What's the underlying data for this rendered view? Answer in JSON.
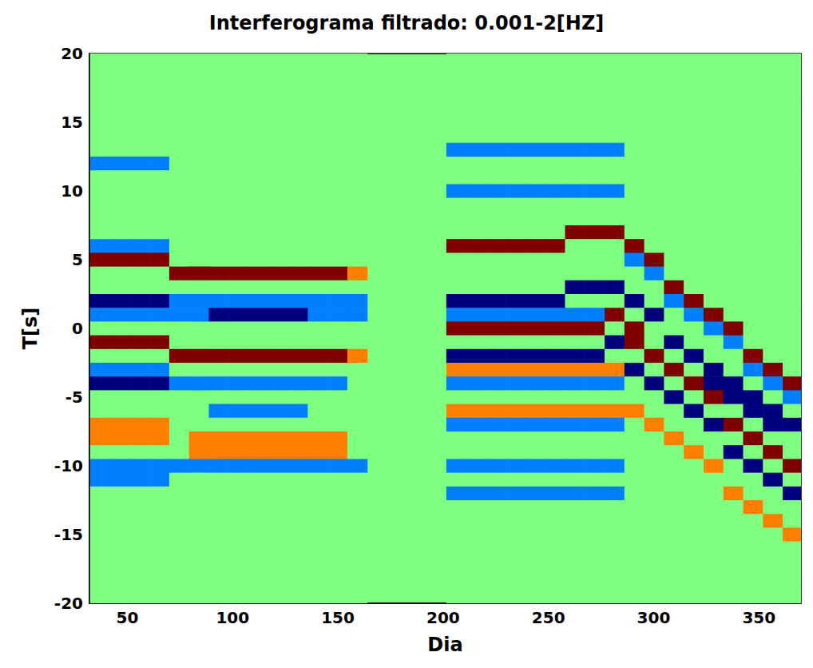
{
  "chart_data": {
    "type": "heatmap",
    "title": "Interferograma filtrado: 0.001-2[HZ]",
    "x_label": "Dia",
    "y_label": "T[s]",
    "xlim": [
      32,
      370
    ],
    "ylim": [
      -20,
      20
    ],
    "xticks": [
      50,
      100,
      150,
      200,
      250,
      300,
      350
    ],
    "yticks": [
      -20,
      -15,
      -10,
      -5,
      0,
      5,
      10,
      15,
      20
    ],
    "zlim": [
      -2,
      2
    ],
    "grid": false,
    "x": [
      37,
      46.4,
      55.8,
      65.2,
      74.6,
      84,
      93.4,
      102.8,
      112.2,
      121.6,
      131,
      140.4,
      149.8,
      159.2,
      168.6,
      178,
      187.4,
      196.8,
      206.2,
      215.6,
      225,
      234.4,
      243.8,
      253.2,
      262.6,
      272,
      281.4,
      290.8,
      300.2,
      309.6,
      319,
      328.4,
      337.8,
      347.2,
      356.6,
      366
    ],
    "y": [
      20,
      19,
      18,
      17,
      16,
      15,
      14,
      13,
      12,
      11,
      10,
      9,
      8,
      7,
      6,
      5,
      4,
      3,
      2,
      1,
      0,
      -1,
      -2,
      -3,
      -4,
      -5,
      -6,
      -7,
      -8,
      -9,
      -10,
      -11,
      -12,
      -13,
      -14,
      -15,
      -16,
      -17,
      -18,
      -19,
      -20
    ],
    "values": [
      [
        0,
        0,
        0,
        0,
        0,
        0,
        0,
        0,
        0,
        0,
        0,
        0,
        0,
        0,
        null,
        null,
        null,
        null,
        0,
        0,
        0,
        0,
        0,
        0,
        0,
        0,
        0,
        0,
        0,
        0,
        0,
        0,
        0,
        0,
        0,
        0
      ],
      [
        0,
        0,
        0,
        0,
        0,
        0,
        0,
        0,
        0,
        0,
        0,
        0,
        0,
        0,
        null,
        null,
        null,
        null,
        0,
        0,
        0,
        0,
        0,
        0,
        0,
        0,
        0,
        0,
        0,
        0,
        0,
        0,
        0,
        0,
        0,
        0
      ],
      [
        0,
        0,
        0,
        0,
        0,
        0,
        0,
        0,
        0,
        0,
        0,
        0,
        0,
        0,
        null,
        null,
        null,
        null,
        0,
        0,
        0,
        0,
        0,
        0,
        0,
        0,
        0,
        0,
        0,
        0,
        0,
        0,
        0,
        0,
        0,
        0
      ],
      [
        0,
        0,
        0,
        0,
        0,
        0,
        0,
        0,
        0,
        0,
        0,
        0,
        0,
        0,
        null,
        null,
        null,
        null,
        0,
        0,
        0,
        0,
        0,
        0,
        0,
        0,
        0,
        0,
        0,
        0,
        0,
        0,
        0,
        0,
        0,
        0
      ],
      [
        0,
        0,
        0,
        0,
        0,
        0,
        0,
        0,
        0,
        0,
        0,
        0,
        0,
        0,
        null,
        null,
        null,
        null,
        0,
        0,
        0,
        0,
        0,
        0,
        0,
        0,
        0,
        0,
        0,
        0,
        0,
        0,
        0,
        0,
        0,
        0
      ],
      [
        0,
        0,
        0,
        0,
        0,
        0,
        0,
        0,
        0,
        0,
        0,
        0,
        0,
        0,
        null,
        null,
        null,
        null,
        0,
        0,
        0,
        0,
        0,
        0,
        0,
        0,
        0,
        0,
        0,
        0,
        0,
        0,
        0,
        0,
        0,
        0
      ],
      [
        0,
        0,
        0,
        0,
        0,
        0,
        0,
        0,
        0,
        0,
        0,
        0,
        0,
        0,
        null,
        null,
        null,
        null,
        0,
        0,
        0,
        0,
        0,
        0,
        0,
        0,
        0,
        0,
        0,
        0,
        0,
        0,
        0,
        0,
        0,
        0
      ],
      [
        0,
        0,
        0,
        0,
        0,
        0,
        0,
        0,
        0,
        0,
        0,
        0,
        0,
        0,
        null,
        null,
        null,
        null,
        -1,
        -1,
        -1,
        -1,
        -1,
        -1,
        -1,
        -1,
        -1,
        0,
        0,
        0,
        0,
        0,
        0,
        0,
        0,
        0
      ],
      [
        -1,
        -1,
        -1,
        -1,
        0,
        0,
        0,
        0,
        0,
        0,
        0,
        0,
        0,
        0,
        null,
        null,
        null,
        null,
        0,
        0,
        0,
        0,
        0,
        0,
        0,
        0,
        0,
        0,
        0,
        0,
        0,
        0,
        0,
        0,
        0,
        0
      ],
      [
        0,
        0,
        0,
        0,
        0,
        0,
        0,
        0,
        0,
        0,
        0,
        0,
        0,
        0,
        null,
        null,
        null,
        null,
        0,
        0,
        0,
        0,
        0,
        0,
        0,
        0,
        0,
        0,
        0,
        0,
        0,
        0,
        0,
        0,
        0,
        0
      ],
      [
        0,
        0,
        0,
        0,
        0,
        0,
        0,
        0,
        0,
        0,
        0,
        0,
        0,
        0,
        null,
        null,
        null,
        null,
        -1,
        -1,
        -1,
        -1,
        -1,
        -1,
        -1,
        -1,
        -1,
        0,
        0,
        0,
        0,
        0,
        0,
        0,
        0,
        0
      ],
      [
        0,
        0,
        0,
        0,
        0,
        0,
        0,
        0,
        0,
        0,
        0,
        0,
        0,
        0,
        null,
        null,
        null,
        null,
        0,
        0,
        0,
        0,
        0,
        0,
        0,
        0,
        0,
        0,
        0,
        0,
        0,
        0,
        0,
        0,
        0,
        0
      ],
      [
        0,
        0,
        0,
        0,
        0,
        0,
        0,
        0,
        0,
        0,
        0,
        0,
        0,
        0,
        null,
        null,
        null,
        null,
        0,
        0,
        0,
        0,
        0,
        0,
        0,
        0,
        0,
        0,
        0,
        0,
        0,
        0,
        0,
        0,
        0,
        0
      ],
      [
        0,
        0,
        0,
        0,
        0,
        0,
        0,
        0,
        0,
        0,
        0,
        0,
        0,
        0,
        null,
        null,
        null,
        null,
        0,
        0,
        0,
        0,
        0,
        0,
        2,
        2,
        2,
        0,
        0,
        0,
        0,
        0,
        0,
        0,
        0,
        0
      ],
      [
        -1,
        -1,
        -1,
        -1,
        0,
        0,
        0,
        0,
        0,
        0,
        0,
        0,
        0,
        0,
        null,
        null,
        null,
        null,
        2,
        2,
        2,
        2,
        2,
        2,
        0,
        0,
        0,
        2,
        0,
        0,
        0,
        0,
        0,
        0,
        0,
        0
      ],
      [
        2,
        2,
        2,
        2,
        0,
        0,
        0,
        0,
        0,
        0,
        0,
        0,
        0,
        0,
        null,
        null,
        null,
        null,
        0,
        0,
        0,
        0,
        0,
        0,
        0,
        0,
        0,
        -1,
        2,
        0,
        0,
        0,
        0,
        0,
        0,
        0
      ],
      [
        0,
        0,
        0,
        0,
        2,
        2,
        2,
        2,
        2,
        2,
        2,
        2,
        2,
        1,
        null,
        null,
        null,
        null,
        0,
        0,
        0,
        0,
        0,
        0,
        0,
        0,
        0,
        0,
        -1,
        0,
        0,
        0,
        0,
        0,
        0,
        0
      ],
      [
        0,
        0,
        0,
        0,
        0,
        0,
        0,
        0,
        0,
        0,
        0,
        0,
        0,
        0,
        null,
        null,
        null,
        null,
        0,
        0,
        0,
        0,
        0,
        0,
        -2,
        -2,
        -2,
        0,
        0,
        2,
        0,
        0,
        0,
        0,
        0,
        0
      ],
      [
        -2,
        -2,
        -2,
        -2,
        -1,
        -1,
        -1,
        -1,
        -1,
        -1,
        -1,
        -1,
        -1,
        -1,
        null,
        null,
        null,
        null,
        -2,
        -2,
        -2,
        -2,
        -2,
        -2,
        0,
        0,
        0,
        -2,
        0,
        -1,
        2,
        0,
        0,
        0,
        0,
        0
      ],
      [
        -1,
        -1,
        -1,
        -1,
        -1,
        -1,
        -2,
        -2,
        -2,
        -2,
        -2,
        -1,
        -1,
        -1,
        null,
        null,
        null,
        null,
        -1,
        -1,
        -1,
        -1,
        -1,
        -1,
        -1,
        -1,
        2,
        0,
        -2,
        0,
        -1,
        2,
        0,
        0,
        0,
        0
      ],
      [
        0,
        0,
        0,
        0,
        0,
        0,
        0,
        0,
        0,
        0,
        0,
        0,
        0,
        0,
        null,
        null,
        null,
        null,
        2,
        2,
        2,
        2,
        2,
        2,
        2,
        2,
        0,
        2,
        0,
        0,
        0,
        -1,
        2,
        0,
        0,
        0
      ],
      [
        2,
        2,
        2,
        2,
        0,
        0,
        0,
        0,
        0,
        0,
        0,
        0,
        0,
        0,
        null,
        null,
        null,
        null,
        0,
        0,
        0,
        0,
        0,
        0,
        0,
        0,
        -2,
        2,
        0,
        -2,
        0,
        0,
        -1,
        0,
        0,
        0
      ],
      [
        0,
        0,
        0,
        0,
        2,
        2,
        2,
        2,
        2,
        2,
        2,
        2,
        2,
        1,
        null,
        null,
        null,
        null,
        -2,
        -2,
        -2,
        -2,
        -2,
        -2,
        -2,
        -2,
        0,
        0,
        2,
        0,
        -2,
        0,
        0,
        2,
        0,
        0
      ],
      [
        -1,
        -1,
        -1,
        -1,
        0,
        0,
        0,
        0,
        0,
        0,
        0,
        0,
        0,
        0,
        null,
        null,
        null,
        null,
        1,
        1,
        1,
        1,
        1,
        1,
        1,
        1,
        1,
        -2,
        0,
        2,
        0,
        -2,
        0,
        -1,
        2,
        0
      ],
      [
        -2,
        -2,
        -2,
        -2,
        -1,
        -1,
        -1,
        -1,
        -1,
        -1,
        -1,
        -1,
        -1,
        0,
        null,
        null,
        null,
        null,
        -1,
        -1,
        -1,
        -1,
        -1,
        -1,
        -1,
        -1,
        -1,
        0,
        -2,
        0,
        2,
        -2,
        -2,
        0,
        -1,
        2
      ],
      [
        0,
        0,
        0,
        0,
        0,
        0,
        0,
        0,
        0,
        0,
        0,
        0,
        0,
        0,
        null,
        null,
        null,
        null,
        0,
        0,
        0,
        0,
        0,
        0,
        0,
        0,
        0,
        0,
        0,
        -2,
        0,
        2,
        -2,
        -2,
        0,
        -1
      ],
      [
        0,
        0,
        0,
        0,
        0,
        0,
        -1,
        -1,
        -1,
        -1,
        -1,
        0,
        0,
        0,
        null,
        null,
        null,
        null,
        1,
        1,
        1,
        1,
        1,
        1,
        1,
        1,
        1,
        1,
        0,
        0,
        -2,
        0,
        0,
        -2,
        -2,
        0
      ],
      [
        1,
        1,
        1,
        1,
        0,
        0,
        0,
        0,
        0,
        0,
        0,
        0,
        0,
        0,
        null,
        null,
        null,
        null,
        -1,
        -1,
        -1,
        -1,
        -1,
        -1,
        -1,
        -1,
        -1,
        0,
        1,
        0,
        0,
        -2,
        2,
        0,
        -2,
        -2
      ],
      [
        1,
        1,
        1,
        1,
        0,
        1,
        1,
        1,
        1,
        1,
        1,
        1,
        1,
        0,
        null,
        null,
        null,
        null,
        0,
        0,
        0,
        0,
        0,
        0,
        0,
        0,
        0,
        0,
        0,
        1,
        0,
        0,
        0,
        2,
        0,
        0
      ],
      [
        0,
        0,
        0,
        0,
        0,
        1,
        1,
        1,
        1,
        1,
        1,
        1,
        1,
        0,
        null,
        null,
        null,
        null,
        0,
        0,
        0,
        0,
        0,
        0,
        0,
        0,
        0,
        0,
        0,
        0,
        1,
        0,
        -2,
        0,
        2,
        0
      ],
      [
        -1,
        -1,
        -1,
        -1,
        -1,
        -1,
        -1,
        -1,
        -1,
        -1,
        -1,
        -1,
        -1,
        -1,
        null,
        null,
        null,
        null,
        -1,
        -1,
        -1,
        -1,
        -1,
        -1,
        -1,
        -1,
        -1,
        0,
        0,
        0,
        0,
        1,
        0,
        -2,
        0,
        2
      ],
      [
        -1,
        -1,
        -1,
        -1,
        0,
        0,
        0,
        0,
        0,
        0,
        0,
        0,
        0,
        0,
        null,
        null,
        null,
        null,
        0,
        0,
        0,
        0,
        0,
        0,
        0,
        0,
        0,
        0,
        0,
        0,
        0,
        0,
        0,
        0,
        -2,
        0
      ],
      [
        0,
        0,
        0,
        0,
        0,
        0,
        0,
        0,
        0,
        0,
        0,
        0,
        0,
        0,
        null,
        null,
        null,
        null,
        -1,
        -1,
        -1,
        -1,
        -1,
        -1,
        -1,
        -1,
        -1,
        0,
        0,
        0,
        0,
        0,
        1,
        0,
        0,
        -2
      ],
      [
        0,
        0,
        0,
        0,
        0,
        0,
        0,
        0,
        0,
        0,
        0,
        0,
        0,
        0,
        null,
        null,
        null,
        null,
        0,
        0,
        0,
        0,
        0,
        0,
        0,
        0,
        0,
        0,
        0,
        0,
        0,
        0,
        0,
        1,
        0,
        0
      ],
      [
        0,
        0,
        0,
        0,
        0,
        0,
        0,
        0,
        0,
        0,
        0,
        0,
        0,
        0,
        null,
        null,
        null,
        null,
        0,
        0,
        0,
        0,
        0,
        0,
        0,
        0,
        0,
        0,
        0,
        0,
        0,
        0,
        0,
        0,
        1,
        0
      ],
      [
        0,
        0,
        0,
        0,
        0,
        0,
        0,
        0,
        0,
        0,
        0,
        0,
        0,
        0,
        null,
        null,
        null,
        null,
        0,
        0,
        0,
        0,
        0,
        0,
        0,
        0,
        0,
        0,
        0,
        0,
        0,
        0,
        0,
        0,
        0,
        1
      ],
      [
        0,
        0,
        0,
        0,
        0,
        0,
        0,
        0,
        0,
        0,
        0,
        0,
        0,
        0,
        null,
        null,
        null,
        null,
        0,
        0,
        0,
        0,
        0,
        0,
        0,
        0,
        0,
        0,
        0,
        0,
        0,
        0,
        0,
        0,
        0,
        0
      ],
      [
        0,
        0,
        0,
        0,
        0,
        0,
        0,
        0,
        0,
        0,
        0,
        0,
        0,
        0,
        null,
        null,
        null,
        null,
        0,
        0,
        0,
        0,
        0,
        0,
        0,
        0,
        0,
        0,
        0,
        0,
        0,
        0,
        0,
        0,
        0,
        0
      ],
      [
        0,
        0,
        0,
        0,
        0,
        0,
        0,
        0,
        0,
        0,
        0,
        0,
        0,
        0,
        null,
        null,
        null,
        null,
        0,
        0,
        0,
        0,
        0,
        0,
        0,
        0,
        0,
        0,
        0,
        0,
        0,
        0,
        0,
        0,
        0,
        0
      ],
      [
        0,
        0,
        0,
        0,
        0,
        0,
        0,
        0,
        0,
        0,
        0,
        0,
        0,
        0,
        null,
        null,
        null,
        null,
        0,
        0,
        0,
        0,
        0,
        0,
        0,
        0,
        0,
        0,
        0,
        0,
        0,
        0,
        0,
        0,
        0,
        0
      ],
      [
        0,
        0,
        0,
        0,
        0,
        0,
        0,
        0,
        0,
        0,
        0,
        0,
        0,
        0,
        null,
        null,
        null,
        null,
        0,
        0,
        0,
        0,
        0,
        0,
        0,
        0,
        0,
        0,
        0,
        0,
        0,
        0,
        0,
        0,
        0,
        0
      ]
    ]
  }
}
